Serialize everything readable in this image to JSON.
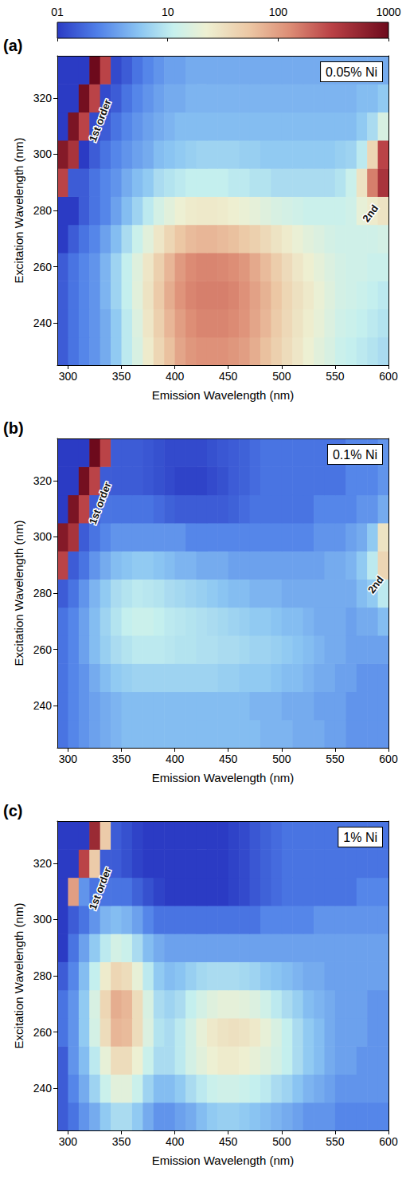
{
  "colorbar": {
    "range": [
      1,
      1000
    ],
    "ticks": [
      {
        "value": 1,
        "label": "01"
      },
      10,
      100,
      1000
    ],
    "log": true
  },
  "chart_data": [
    {
      "type": "heatmap",
      "panel": "(a)",
      "label": "0.05% Ni",
      "x_label": "Emission Wavelength (nm)",
      "y_label": "Excitation Wavelength (nm)",
      "xlim": [
        290,
        600
      ],
      "xticks": [
        300,
        350,
        400,
        450,
        500,
        550,
        600
      ],
      "ylim": [
        225,
        335
      ],
      "yticks": [
        240,
        260,
        280,
        300,
        320
      ],
      "x": [
        295,
        305,
        315,
        325,
        335,
        345,
        355,
        365,
        375,
        385,
        395,
        405,
        415,
        425,
        435,
        445,
        455,
        465,
        475,
        485,
        495,
        505,
        515,
        525,
        535,
        545,
        555,
        565,
        575,
        585,
        595
      ],
      "y": [
        230,
        240,
        250,
        260,
        270,
        280,
        290,
        300,
        310,
        320,
        330
      ],
      "values": [
        [
          1.5,
          2,
          2.5,
          3,
          4,
          6,
          10,
          15,
          25,
          40,
          60,
          90,
          110,
          120,
          120,
          120,
          110,
          100,
          80,
          60,
          45,
          35,
          28,
          22,
          18,
          15,
          12,
          11,
          10,
          9,
          8
        ],
        [
          1.5,
          2,
          2.5,
          3,
          4,
          6,
          10,
          16,
          28,
          45,
          70,
          100,
          125,
          140,
          140,
          140,
          130,
          115,
          90,
          70,
          50,
          38,
          30,
          24,
          20,
          16,
          13,
          12,
          11,
          10,
          9
        ],
        [
          1.5,
          2,
          2.5,
          3,
          4.5,
          7,
          11,
          18,
          30,
          50,
          80,
          115,
          140,
          150,
          150,
          150,
          140,
          120,
          95,
          75,
          55,
          40,
          32,
          26,
          21,
          17,
          14,
          13,
          12,
          11,
          10
        ],
        [
          1.5,
          2,
          2.5,
          3,
          4.5,
          7,
          11,
          17,
          28,
          45,
          70,
          105,
          130,
          140,
          140,
          135,
          125,
          110,
          85,
          65,
          48,
          36,
          28,
          23,
          19,
          16,
          14,
          13,
          13,
          12,
          12
        ],
        [
          1,
          1.5,
          2,
          2.5,
          3.5,
          5,
          8,
          12,
          18,
          28,
          40,
          55,
          65,
          70,
          70,
          65,
          60,
          52,
          45,
          37,
          30,
          25,
          21,
          18,
          16,
          14,
          13,
          13,
          13,
          13,
          14
        ],
        [
          0.8,
          1,
          1.5,
          2,
          2.5,
          3.5,
          5,
          7,
          10,
          14,
          18,
          22,
          25,
          26,
          26,
          25,
          23,
          21,
          19,
          17,
          15,
          14,
          13,
          12,
          12,
          12,
          12,
          13,
          20,
          25,
          30
        ],
        [
          300,
          1.5,
          1.5,
          2,
          2.5,
          3,
          4,
          5,
          6,
          8,
          9,
          10,
          11,
          11,
          11,
          11,
          10,
          10,
          9,
          9,
          8,
          8,
          8,
          8,
          8,
          8,
          9,
          12,
          30,
          150,
          400
        ],
        [
          700,
          400,
          1,
          1.5,
          2,
          2.5,
          3,
          3.5,
          4,
          5,
          5.5,
          6,
          6.5,
          7,
          7,
          7,
          7,
          6.5,
          6.5,
          6,
          6,
          6,
          6,
          6,
          6,
          6,
          6.5,
          7,
          10,
          40,
          300
        ],
        [
          0.5,
          800,
          300,
          1.2,
          1.5,
          2,
          2.5,
          3,
          3.5,
          4,
          4.5,
          5,
          5,
          5,
          5,
          5,
          5,
          5,
          5,
          5,
          5,
          5,
          5,
          5,
          5,
          5,
          5,
          5,
          6,
          8,
          15
        ],
        [
          0.5,
          0.5,
          900,
          300,
          1.2,
          1.5,
          2,
          2.5,
          3,
          3.5,
          4,
          4,
          4.5,
          4.5,
          4.5,
          4.5,
          4.5,
          4.5,
          4.5,
          4.5,
          4.5,
          4.5,
          4.5,
          4.5,
          4.5,
          4.5,
          4.5,
          4.5,
          5,
          5,
          6
        ],
        [
          0.5,
          0.5,
          0.5,
          1000,
          300,
          1.2,
          1.5,
          2,
          2.5,
          3,
          3.5,
          3.5,
          4,
          4,
          4,
          4,
          4,
          4,
          4,
          4,
          4,
          4,
          4,
          4,
          4,
          4,
          4,
          4,
          4,
          4,
          4
        ]
      ],
      "annotations": [
        {
          "text": "1st order",
          "x": 330,
          "y": 312
        },
        {
          "text": "2nd",
          "x": 583,
          "y": 279
        }
      ]
    },
    {
      "type": "heatmap",
      "panel": "(b)",
      "label": "0.1% Ni",
      "x_label": "Emission Wavelength (nm)",
      "y_label": "Excitation Wavelength (nm)",
      "xlim": [
        290,
        600
      ],
      "xticks": [
        300,
        350,
        400,
        450,
        500,
        550,
        600
      ],
      "ylim": [
        225,
        335
      ],
      "yticks": [
        240,
        260,
        280,
        300,
        320
      ],
      "x": [
        295,
        305,
        315,
        325,
        335,
        345,
        355,
        365,
        375,
        385,
        395,
        405,
        415,
        425,
        435,
        445,
        455,
        465,
        475,
        485,
        495,
        505,
        515,
        525,
        535,
        545,
        555,
        565,
        575,
        585,
        595
      ],
      "y": [
        230,
        240,
        250,
        260,
        270,
        280,
        290,
        300,
        310,
        320,
        330
      ],
      "values": [
        [
          2,
          2.5,
          3,
          3.5,
          4,
          4.5,
          5,
          5,
          5,
          5,
          5,
          5,
          5,
          5,
          5,
          5,
          5,
          5,
          5,
          4.5,
          4.5,
          4.5,
          4,
          4,
          4,
          3.5,
          3.5,
          3,
          3,
          3,
          3
        ],
        [
          2,
          2.5,
          3,
          3.5,
          4,
          4.5,
          5,
          5,
          5,
          5,
          5,
          5,
          5,
          5,
          5,
          5,
          5,
          5,
          4.5,
          4.5,
          4.5,
          4,
          4,
          4,
          3.5,
          3.5,
          3.5,
          3,
          3,
          3,
          3
        ],
        [
          2,
          2.5,
          3,
          4,
          5,
          6,
          6.5,
          7,
          7,
          7,
          7,
          7,
          7,
          7,
          7,
          6.5,
          6.5,
          6,
          6,
          6,
          5.5,
          5,
          5,
          4.5,
          4,
          4,
          3.5,
          3.5,
          3,
          3,
          3
        ],
        [
          2,
          2.5,
          3.5,
          5,
          6.5,
          8,
          9,
          10,
          10,
          10,
          9.5,
          9,
          9,
          8.5,
          8.5,
          8,
          8,
          7.5,
          7,
          7,
          6.5,
          6,
          5.5,
          5,
          4.5,
          4,
          4,
          3.5,
          3.5,
          3.5,
          3.5
        ],
        [
          2,
          2.5,
          3.5,
          5,
          7,
          9,
          11,
          12,
          12,
          11,
          10,
          9.5,
          9,
          8.5,
          8,
          7.5,
          7,
          6.5,
          6,
          6,
          5.5,
          5,
          5,
          4.5,
          4,
          4,
          4,
          3.5,
          4,
          4,
          5
        ],
        [
          1.5,
          2,
          3,
          4.5,
          6,
          8,
          9,
          10,
          9.5,
          9,
          8,
          7.5,
          7,
          6.5,
          6,
          5.5,
          5,
          5,
          4.5,
          4.5,
          4.5,
          4,
          4,
          4,
          4,
          4,
          4,
          4,
          5,
          6,
          10
        ],
        [
          300,
          1.5,
          2,
          3,
          4,
          5,
          5.5,
          6,
          6,
          5.5,
          5,
          4.5,
          4.5,
          4,
          4,
          4,
          3.5,
          3.5,
          3.5,
          3.5,
          3.5,
          3.5,
          3.5,
          3.5,
          3.5,
          4,
          4,
          4.5,
          6,
          10,
          40
        ],
        [
          700,
          400,
          1.5,
          2,
          2.5,
          3,
          3,
          3,
          3,
          3,
          3,
          3,
          2.5,
          2.5,
          2.5,
          2.5,
          2.5,
          2.5,
          2.5,
          2.5,
          2.5,
          2.5,
          2.5,
          2.5,
          3,
          3,
          3,
          3.5,
          4,
          6,
          30
        ],
        [
          0.5,
          800,
          300,
          1.5,
          2,
          2,
          2,
          2,
          2,
          1.8,
          1.6,
          1.5,
          1.5,
          1.5,
          1.5,
          1.5,
          1.6,
          1.8,
          2,
          2,
          2,
          2,
          2,
          2,
          2.5,
          2.5,
          2.5,
          2.5,
          3,
          3,
          4
        ],
        [
          0.5,
          0.5,
          900,
          300,
          1.5,
          1.5,
          1.5,
          1.5,
          1.4,
          1.3,
          1.2,
          1.1,
          1.1,
          1.1,
          1.2,
          1.3,
          1.5,
          1.6,
          1.8,
          2,
          2,
          2,
          2,
          2,
          2,
          2,
          2,
          2.5,
          2.5,
          2.5,
          3
        ],
        [
          0.5,
          0.5,
          0.5,
          1000,
          300,
          1.5,
          1.5,
          1.5,
          1.4,
          1.3,
          1.2,
          1.2,
          1.2,
          1.2,
          1.3,
          1.4,
          1.5,
          1.6,
          1.8,
          2,
          2,
          2,
          2,
          2,
          2,
          2,
          2,
          2.5,
          2.5,
          2.5,
          3
        ]
      ],
      "annotations": [
        {
          "text": "1st order",
          "x": 330,
          "y": 312
        },
        {
          "text": "2nd",
          "x": 588,
          "y": 283
        }
      ]
    },
    {
      "type": "heatmap",
      "panel": "(c)",
      "label": "1% Ni",
      "x_label": "Emission Wavelength (nm)",
      "y_label": "Excitation Wavelength (nm)",
      "xlim": [
        290,
        600
      ],
      "xticks": [
        300,
        350,
        400,
        450,
        500,
        550,
        600
      ],
      "ylim": [
        225,
        335
      ],
      "yticks": [
        240,
        260,
        280,
        300,
        320
      ],
      "x": [
        295,
        305,
        315,
        325,
        335,
        345,
        355,
        365,
        375,
        385,
        395,
        405,
        415,
        425,
        435,
        445,
        455,
        465,
        475,
        485,
        495,
        505,
        515,
        525,
        535,
        545,
        555,
        565,
        575,
        585,
        595
      ],
      "y": [
        230,
        240,
        250,
        260,
        270,
        280,
        290,
        300,
        310,
        320,
        330
      ],
      "values": [
        [
          1.5,
          2,
          3,
          4,
          6,
          8,
          8,
          6,
          4,
          3,
          3,
          3.5,
          4,
          5,
          6,
          6.5,
          6.5,
          6,
          5.5,
          5,
          4.5,
          4,
          3.5,
          3,
          3,
          3,
          2.5,
          2.5,
          2.5,
          2.5,
          2.5
        ],
        [
          1.5,
          2.5,
          4,
          7,
          12,
          18,
          18,
          12,
          7,
          5,
          5,
          6,
          8,
          10,
          12,
          13,
          13,
          12,
          11,
          10,
          8,
          7,
          5.5,
          4.5,
          4,
          3.5,
          3,
          3,
          3,
          3,
          3
        ],
        [
          1.5,
          3,
          5,
          10,
          20,
          35,
          35,
          22,
          12,
          8,
          8,
          10,
          14,
          18,
          22,
          25,
          25,
          23,
          20,
          17,
          14,
          11,
          8,
          6,
          5,
          4,
          3.5,
          3.5,
          3,
          3,
          3
        ],
        [
          2,
          3,
          6,
          14,
          35,
          70,
          65,
          35,
          16,
          9,
          8,
          10,
          14,
          20,
          26,
          30,
          32,
          30,
          26,
          20,
          15,
          11,
          8,
          6,
          5,
          4,
          3.5,
          3.5,
          3.5,
          3,
          3
        ],
        [
          2,
          3,
          6,
          15,
          40,
          80,
          70,
          35,
          15,
          8,
          7,
          8,
          11,
          14,
          17,
          19,
          19,
          18,
          16,
          13,
          10,
          8,
          6.5,
          5,
          4.5,
          4,
          3.5,
          3.5,
          3.5,
          3,
          3
        ],
        [
          1.5,
          2.5,
          5,
          11,
          25,
          40,
          35,
          20,
          10,
          6,
          5,
          5.5,
          6.5,
          7.5,
          8,
          8,
          8,
          7.5,
          7,
          6,
          5.5,
          5,
          4.5,
          4,
          4,
          3.5,
          3.5,
          3.5,
          3.5,
          3.5,
          3.5
        ],
        [
          1,
          2,
          3.5,
          6,
          10,
          14,
          12,
          8,
          5,
          4,
          3.5,
          3.5,
          3.5,
          3.5,
          3.5,
          3.5,
          3.5,
          3.5,
          3.5,
          3.5,
          3.5,
          3.5,
          3.5,
          3.5,
          3.5,
          3.5,
          3.5,
          3.5,
          3.5,
          3.5,
          3.5
        ],
        [
          1,
          1.5,
          2,
          3,
          4.5,
          5,
          4.5,
          3.5,
          2.5,
          2,
          2,
          2,
          2,
          2,
          2,
          2,
          2,
          2,
          2,
          2.5,
          2.5,
          2.5,
          2.5,
          2.5,
          3,
          3,
          3,
          3,
          3,
          3,
          3
        ],
        [
          0.5,
          100,
          3,
          2,
          2,
          2,
          2,
          1.6,
          1.3,
          1.1,
          1,
          1,
          1,
          1,
          1,
          1,
          1.1,
          1.2,
          1.4,
          1.6,
          1.8,
          2,
          2,
          2,
          2,
          2,
          2,
          2,
          2.5,
          2.5,
          2.5
        ],
        [
          0.5,
          0.5,
          300,
          50,
          1.5,
          1.5,
          1.3,
          1.1,
          1,
          0.9,
          0.8,
          0.8,
          0.8,
          0.8,
          0.9,
          1,
          1.1,
          1.2,
          1.4,
          1.6,
          1.8,
          2,
          2,
          2,
          2,
          2,
          2,
          2,
          2,
          2,
          2
        ],
        [
          0.5,
          0.5,
          0.5,
          500,
          50,
          1.5,
          1.3,
          1.1,
          1,
          0.9,
          0.9,
          0.9,
          0.9,
          0.9,
          1,
          1,
          1.1,
          1.2,
          1.4,
          1.6,
          1.8,
          2,
          2,
          2,
          2,
          2,
          2,
          2,
          2,
          2,
          2
        ]
      ],
      "annotations": [
        {
          "text": "1st order",
          "x": 330,
          "y": 311
        }
      ]
    }
  ]
}
